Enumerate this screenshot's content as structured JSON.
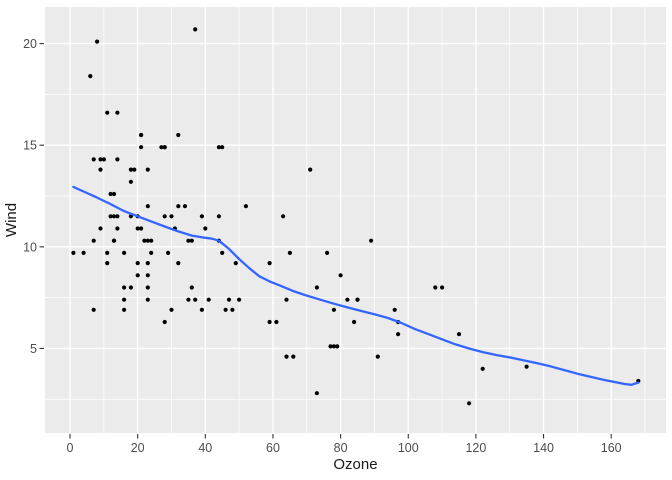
{
  "chart_data": {
    "type": "scatter",
    "title": "",
    "xlabel": "Ozone",
    "ylabel": "Wind",
    "x_ticks": [
      0,
      20,
      40,
      60,
      80,
      100,
      120,
      140,
      160
    ],
    "y_ticks": [
      5,
      10,
      15,
      20
    ],
    "x_minor_ticks": [
      10,
      30,
      50,
      70,
      90,
      110,
      130,
      150,
      170
    ],
    "y_minor_ticks": [
      2.5,
      7.5,
      12.5,
      17.5
    ],
    "xlim": [
      -7.4,
      176.2
    ],
    "ylim": [
      0.84,
      21.8
    ],
    "grid": "major+minor",
    "legend_position": "none",
    "theme": "ggplot2-grey",
    "points": [
      [
        41,
        7.4
      ],
      [
        36,
        8
      ],
      [
        12,
        12.6
      ],
      [
        18,
        11.5
      ],
      [
        28,
        14.9
      ],
      [
        23,
        8.6
      ],
      [
        19,
        13.8
      ],
      [
        8,
        20.1
      ],
      [
        7,
        6.9
      ],
      [
        16,
        9.7
      ],
      [
        11,
        9.2
      ],
      [
        14,
        10.9
      ],
      [
        18,
        13.2
      ],
      [
        14,
        11.5
      ],
      [
        34,
        12
      ],
      [
        6,
        18.4
      ],
      [
        30,
        11.5
      ],
      [
        11,
        9.7
      ],
      [
        1,
        9.7
      ],
      [
        11,
        16.6
      ],
      [
        4,
        9.7
      ],
      [
        32,
        12
      ],
      [
        23,
        12
      ],
      [
        45,
        14.9
      ],
      [
        115,
        5.7
      ],
      [
        37,
        7.4
      ],
      [
        29,
        9.7
      ],
      [
        71,
        13.8
      ],
      [
        39,
        11.5
      ],
      [
        23,
        8
      ],
      [
        21,
        14.9
      ],
      [
        37,
        20.7
      ],
      [
        20,
        9.2
      ],
      [
        12,
        11.5
      ],
      [
        13,
        10.3
      ],
      [
        135,
        4.1
      ],
      [
        49,
        9.2
      ],
      [
        32,
        9.2
      ],
      [
        64,
        4.6
      ],
      [
        40,
        10.9
      ],
      [
        77,
        5.1
      ],
      [
        97,
        6.3
      ],
      [
        97,
        5.7
      ],
      [
        85,
        7.4
      ],
      [
        10,
        14.3
      ],
      [
        27,
        14.9
      ],
      [
        7,
        14.3
      ],
      [
        48,
        6.9
      ],
      [
        35,
        10.3
      ],
      [
        61,
        6.3
      ],
      [
        79,
        5.1
      ],
      [
        63,
        11.5
      ],
      [
        16,
        6.9
      ],
      [
        80,
        8.6
      ],
      [
        108,
        8
      ],
      [
        20,
        8.6
      ],
      [
        52,
        12
      ],
      [
        82,
        7.4
      ],
      [
        50,
        7.4
      ],
      [
        64,
        7.4
      ],
      [
        59,
        9.2
      ],
      [
        39,
        6.9
      ],
      [
        9,
        13.8
      ],
      [
        16,
        7.4
      ],
      [
        78,
        6.9
      ],
      [
        35,
        7.4
      ],
      [
        66,
        4.6
      ],
      [
        122,
        4
      ],
      [
        89,
        10.3
      ],
      [
        110,
        8
      ],
      [
        44,
        11.5
      ],
      [
        28,
        11.5
      ],
      [
        65,
        9.7
      ],
      [
        22,
        10.3
      ],
      [
        59,
        6.3
      ],
      [
        23,
        13.8
      ],
      [
        31,
        10.9
      ],
      [
        44,
        10.3
      ],
      [
        21,
        15.5
      ],
      [
        9,
        14.3
      ],
      [
        45,
        9.7
      ],
      [
        168,
        3.4
      ],
      [
        73,
        8
      ],
      [
        76,
        9.7
      ],
      [
        118,
        2.3
      ],
      [
        84,
        6.3
      ],
      [
        85,
        7.4
      ],
      [
        96,
        6.9
      ],
      [
        78,
        5.1
      ],
      [
        73,
        2.8
      ],
      [
        91,
        4.6
      ],
      [
        47,
        7.4
      ],
      [
        32,
        15.5
      ],
      [
        20,
        10.9
      ],
      [
        23,
        10.3
      ],
      [
        21,
        10.9
      ],
      [
        24,
        9.7
      ],
      [
        44,
        14.9
      ],
      [
        21,
        15.5
      ],
      [
        28,
        14.9
      ],
      [
        9,
        10.9
      ],
      [
        13,
        11.5
      ],
      [
        46,
        6.9
      ],
      [
        18,
        13.8
      ],
      [
        13,
        10.3
      ],
      [
        24,
        10.3
      ],
      [
        16,
        8
      ],
      [
        13,
        12.6
      ],
      [
        23,
        9.2
      ],
      [
        36,
        10.3
      ],
      [
        7,
        10.3
      ],
      [
        14,
        16.6
      ],
      [
        30,
        6.9
      ],
      [
        14,
        14.3
      ],
      [
        18,
        8
      ],
      [
        20,
        11.5
      ],
      [
        28,
        6.3
      ],
      [
        23,
        7.4
      ]
    ],
    "smooth_line": {
      "method": "loess",
      "points": [
        [
          1,
          12.95
        ],
        [
          4,
          12.72
        ],
        [
          8,
          12.42
        ],
        [
          12,
          12.1
        ],
        [
          16,
          11.76
        ],
        [
          20,
          11.5
        ],
        [
          24,
          11.25
        ],
        [
          28,
          11
        ],
        [
          32,
          10.76
        ],
        [
          36,
          10.55
        ],
        [
          39,
          10.47
        ],
        [
          42,
          10.4
        ],
        [
          44,
          10.3
        ],
        [
          47,
          9.9
        ],
        [
          50,
          9.4
        ],
        [
          53,
          8.95
        ],
        [
          56,
          8.55
        ],
        [
          59,
          8.3
        ],
        [
          62,
          8.1
        ],
        [
          66,
          7.82
        ],
        [
          70,
          7.6
        ],
        [
          74,
          7.4
        ],
        [
          78,
          7.2
        ],
        [
          82,
          7.02
        ],
        [
          86,
          6.85
        ],
        [
          90,
          6.68
        ],
        [
          94,
          6.5
        ],
        [
          98,
          6.25
        ],
        [
          102,
          5.95
        ],
        [
          106,
          5.7
        ],
        [
          110,
          5.45
        ],
        [
          114,
          5.2
        ],
        [
          118,
          5
        ],
        [
          122,
          4.82
        ],
        [
          126,
          4.68
        ],
        [
          130,
          4.56
        ],
        [
          134,
          4.42
        ],
        [
          138,
          4.28
        ],
        [
          142,
          4.12
        ],
        [
          146,
          3.94
        ],
        [
          150,
          3.76
        ],
        [
          154,
          3.6
        ],
        [
          158,
          3.45
        ],
        [
          161,
          3.35
        ],
        [
          164,
          3.25
        ],
        [
          166,
          3.21
        ],
        [
          168,
          3.32
        ]
      ]
    },
    "colors": {
      "outer_background": "#FFFFFF",
      "panel_background": "#EBEBEB",
      "grid_major": "#FFFFFF",
      "grid_minor": "#FFFFFF",
      "point": "#000000",
      "smooth_line": "#3366FF",
      "axis_text": "#4D4D4D",
      "axis_title": "#1A1A1A",
      "tick_mark": "#333333"
    }
  }
}
